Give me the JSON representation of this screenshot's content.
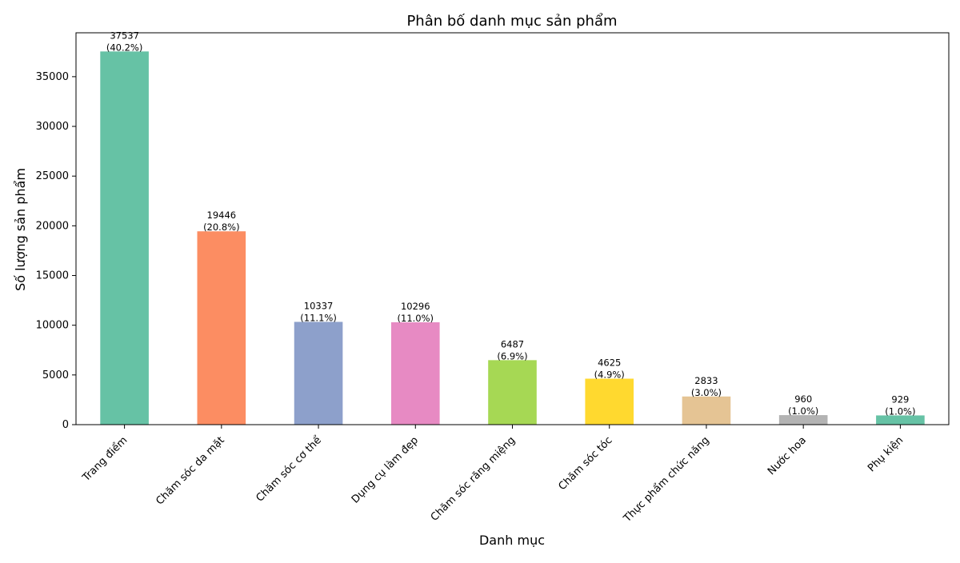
{
  "chart_data": {
    "type": "bar",
    "title": "Phân bố danh mục sản phẩm",
    "xlabel": "Danh mục",
    "ylabel": "Số lượng sản phẩm",
    "categories": [
      "Trang điểm",
      "Chăm sóc da mặt",
      "Chăm sóc cơ thể",
      "Dụng cụ làm đẹp",
      "Chăm sóc răng miệng",
      "Chăm sóc tóc",
      "Thực phẩm chức năng",
      "Nước hoa",
      "Phụ kiện"
    ],
    "values": [
      37537,
      19446,
      10337,
      10296,
      6487,
      4625,
      2833,
      960,
      929
    ],
    "percent_labels": [
      "(40.2%)",
      "(20.8%)",
      "(11.1%)",
      "(11.0%)",
      "(6.9%)",
      "(4.9%)",
      "(3.0%)",
      "(1.0%)",
      "(1.0%)"
    ],
    "colors": [
      "#66c2a5",
      "#fc8d62",
      "#8da0cb",
      "#e78ac3",
      "#a6d854",
      "#ffd92f",
      "#e5c494",
      "#b3b3b3",
      "#66c2a5"
    ],
    "yticks": [
      0,
      5000,
      10000,
      15000,
      20000,
      25000,
      30000,
      35000
    ],
    "ylim": [
      0,
      39414
    ],
    "grid": false,
    "legend": "none"
  }
}
